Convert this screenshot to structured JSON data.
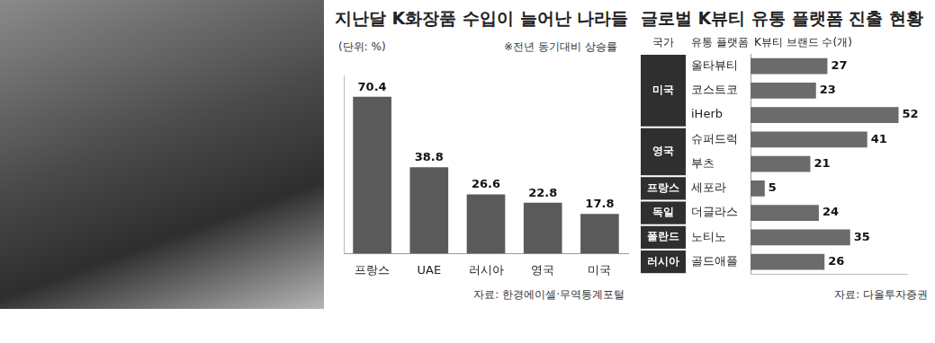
{
  "chart_data": [
    {
      "type": "bar",
      "title": "지난달 K화장품 수입이 늘어난 나라들",
      "subtitle": "(단위: %)",
      "note": "※전년 동기대비 상승률",
      "source": "자료: 한경에이셀·무역통계포털",
      "categories": [
        "프랑스",
        "UAE",
        "러시아",
        "영국",
        "미국"
      ],
      "values": [
        70.4,
        38.8,
        26.6,
        22.8,
        17.8
      ],
      "color": "#5a5a5a",
      "ylim": [
        0,
        80
      ],
      "yticks": [],
      "data_labels": true,
      "tick_labels": "x",
      "grid": false
    },
    {
      "type": "bar",
      "orientation": "horizontal",
      "title": "글로벌 K뷰티 유통 플랫폼 진출 현황",
      "columns": [
        "국가",
        "유통 플랫폼",
        "K뷰티 브랜드 수(개)"
      ],
      "countries": [
        "미국",
        "미국",
        "미국",
        "영국",
        "영국",
        "프랑스",
        "독일",
        "폴란드",
        "러시아"
      ],
      "categories": [
        "울타뷰티",
        "코스트코",
        "iHerb",
        "슈퍼드럭",
        "부츠",
        "세포라",
        "더글라스",
        "노티노",
        "골드애플"
      ],
      "values": [
        27,
        23,
        52,
        41,
        21,
        5,
        24,
        35,
        26
      ],
      "color": "#6b6b6b",
      "xlim": [
        0,
        55
      ],
      "xticks": [],
      "data_labels": true,
      "tick_labels": "y",
      "grid": false,
      "source": "자료: 다올투자증권"
    }
  ]
}
